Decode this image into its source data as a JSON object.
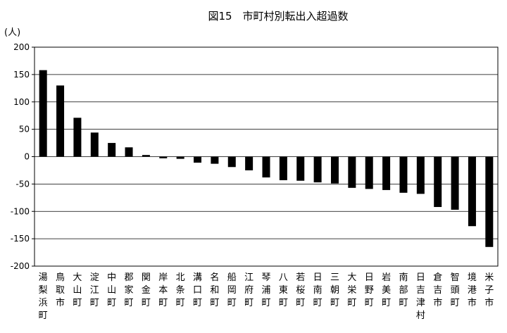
{
  "chart_data": {
    "type": "bar",
    "title": "図15　市町村別転出入超過数",
    "ylabel": "(人)",
    "xlabel": "",
    "ylim": [
      -200,
      200
    ],
    "yticks": [
      200,
      150,
      100,
      50,
      0,
      -50,
      -100,
      -150,
      -200
    ],
    "grid": true,
    "legend": "none",
    "bar_color": "#000000",
    "categories": [
      "湯梨浜町",
      "鳥取市",
      "大山町",
      "淀江町",
      "中山町",
      "郡家町",
      "関金町",
      "岸本町",
      "北条町",
      "溝口町",
      "名和町",
      "船岡町",
      "江府町",
      "琴浦町",
      "八東町",
      "若桜町",
      "日南町",
      "三朝町",
      "大栄町",
      "日野町",
      "岩美町",
      "南部町",
      "日吉津村",
      "倉吉市",
      "智頭町",
      "境港市",
      "米子市"
    ],
    "values": [
      158,
      130,
      71,
      44,
      25,
      17,
      3,
      -3,
      -4,
      -11,
      -13,
      -19,
      -25,
      -38,
      -43,
      -44,
      -47,
      -49,
      -57,
      -59,
      -61,
      -66,
      -68,
      -92,
      -97,
      -127,
      -165
    ]
  }
}
